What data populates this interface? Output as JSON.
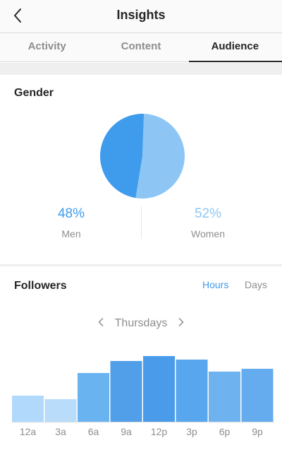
{
  "header": {
    "title": "Insights",
    "back_icon": "chevron-left-icon"
  },
  "tabs": [
    {
      "label": "Activity",
      "active": false
    },
    {
      "label": "Content",
      "active": false
    },
    {
      "label": "Audience",
      "active": true
    }
  ],
  "gender": {
    "title": "Gender",
    "men": {
      "value": "48%",
      "label": "Men",
      "percent": 48,
      "color": "#3f9cec"
    },
    "women": {
      "value": "52%",
      "label": "Women",
      "percent": 52,
      "color": "#8dc6f5"
    }
  },
  "followers": {
    "title": "Followers",
    "toggle": {
      "hours": "Hours",
      "days": "Days",
      "selected": "Hours"
    },
    "day": "Thursdays",
    "prev_icon": "chevron-left-icon",
    "next_icon": "chevron-right-icon"
  },
  "chart_data": {
    "type": "bar",
    "categories": [
      "12a",
      "3a",
      "6a",
      "9a",
      "12p",
      "3p",
      "6p",
      "9p"
    ],
    "values": [
      37,
      32,
      69,
      86,
      93,
      88,
      71,
      75
    ],
    "ylim": [
      0,
      100
    ],
    "colors": [
      "#b1d9fc",
      "#b9dcfb",
      "#6ab3f1",
      "#519fe9",
      "#4a9cea",
      "#58a7ee",
      "#6fb2f0",
      "#64acee"
    ]
  }
}
